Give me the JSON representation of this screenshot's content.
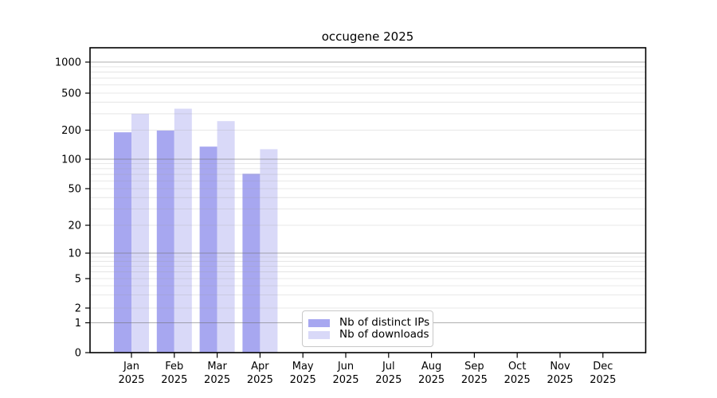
{
  "chart_data": {
    "type": "bar",
    "title": "occugene 2025",
    "x_categories": [
      "Jan",
      "Feb",
      "Mar",
      "Apr",
      "May",
      "Jun",
      "Jul",
      "Aug",
      "Sep",
      "Oct",
      "Nov",
      "Dec"
    ],
    "x_category_year": "2025",
    "series": [
      {
        "name": "Nb of distinct IPs",
        "color": "#a7a7f0",
        "values": [
          190,
          198,
          135,
          71,
          null,
          null,
          null,
          null,
          null,
          null,
          null,
          null
        ]
      },
      {
        "name": "Nb of downloads",
        "color": "#d9d9f8",
        "values": [
          300,
          340,
          250,
          127,
          null,
          null,
          null,
          null,
          null,
          null,
          null,
          null
        ]
      }
    ],
    "y_ticks": [
      0,
      1,
      2,
      5,
      10,
      20,
      50,
      100,
      200,
      500,
      1000
    ],
    "y_scale": "symlog",
    "ylim": [
      0,
      1400
    ],
    "xlabel": "",
    "ylabel": "",
    "grid": "horizontal, major and log-minor lines",
    "legend_position": "inside bottom-center"
  },
  "colors": {
    "background": "#ffffff",
    "axis_frame": "#000000",
    "major_grid": "#b3b3b3",
    "minor_grid": "#e9e9e9",
    "tick_label": "#000000",
    "legend_border": "#c8c8c8"
  }
}
